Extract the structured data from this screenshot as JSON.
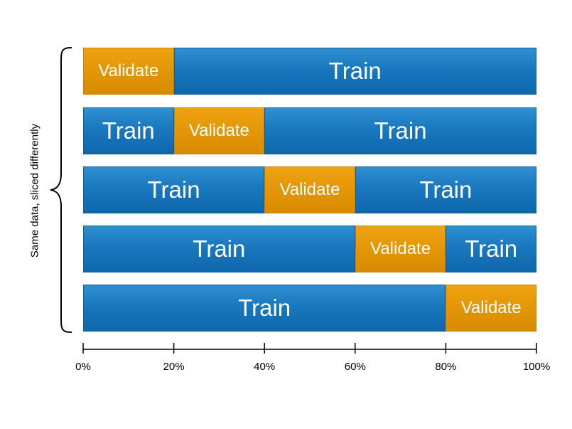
{
  "side_label": "Same data, sliced differently",
  "colors": {
    "train": "#1a78bf",
    "validate": "#e39607"
  },
  "rows": [
    {
      "segments": [
        {
          "kind": "validate",
          "label": "Validate",
          "from": 0,
          "to": 20
        },
        {
          "kind": "train",
          "label": "Train",
          "from": 20,
          "to": 100
        }
      ]
    },
    {
      "segments": [
        {
          "kind": "train",
          "label": "Train",
          "from": 0,
          "to": 20
        },
        {
          "kind": "validate",
          "label": "Validate",
          "from": 20,
          "to": 40
        },
        {
          "kind": "train",
          "label": "Train",
          "from": 40,
          "to": 100
        }
      ]
    },
    {
      "segments": [
        {
          "kind": "train",
          "label": "Train",
          "from": 0,
          "to": 40
        },
        {
          "kind": "validate",
          "label": "Validate",
          "from": 40,
          "to": 60
        },
        {
          "kind": "train",
          "label": "Train",
          "from": 60,
          "to": 100
        }
      ]
    },
    {
      "segments": [
        {
          "kind": "train",
          "label": "Train",
          "from": 0,
          "to": 60
        },
        {
          "kind": "validate",
          "label": "Validate",
          "from": 60,
          "to": 80
        },
        {
          "kind": "train",
          "label": "Train",
          "from": 80,
          "to": 100
        }
      ]
    },
    {
      "segments": [
        {
          "kind": "train",
          "label": "Train",
          "from": 0,
          "to": 80
        },
        {
          "kind": "validate",
          "label": "Validate",
          "from": 80,
          "to": 100
        }
      ]
    }
  ],
  "axis": {
    "ticks": [
      {
        "value": 0,
        "label": "0%"
      },
      {
        "value": 20,
        "label": "20%"
      },
      {
        "value": 40,
        "label": "40%"
      },
      {
        "value": 60,
        "label": "60%"
      },
      {
        "value": 80,
        "label": "80%"
      },
      {
        "value": 100,
        "label": "100%"
      }
    ]
  }
}
